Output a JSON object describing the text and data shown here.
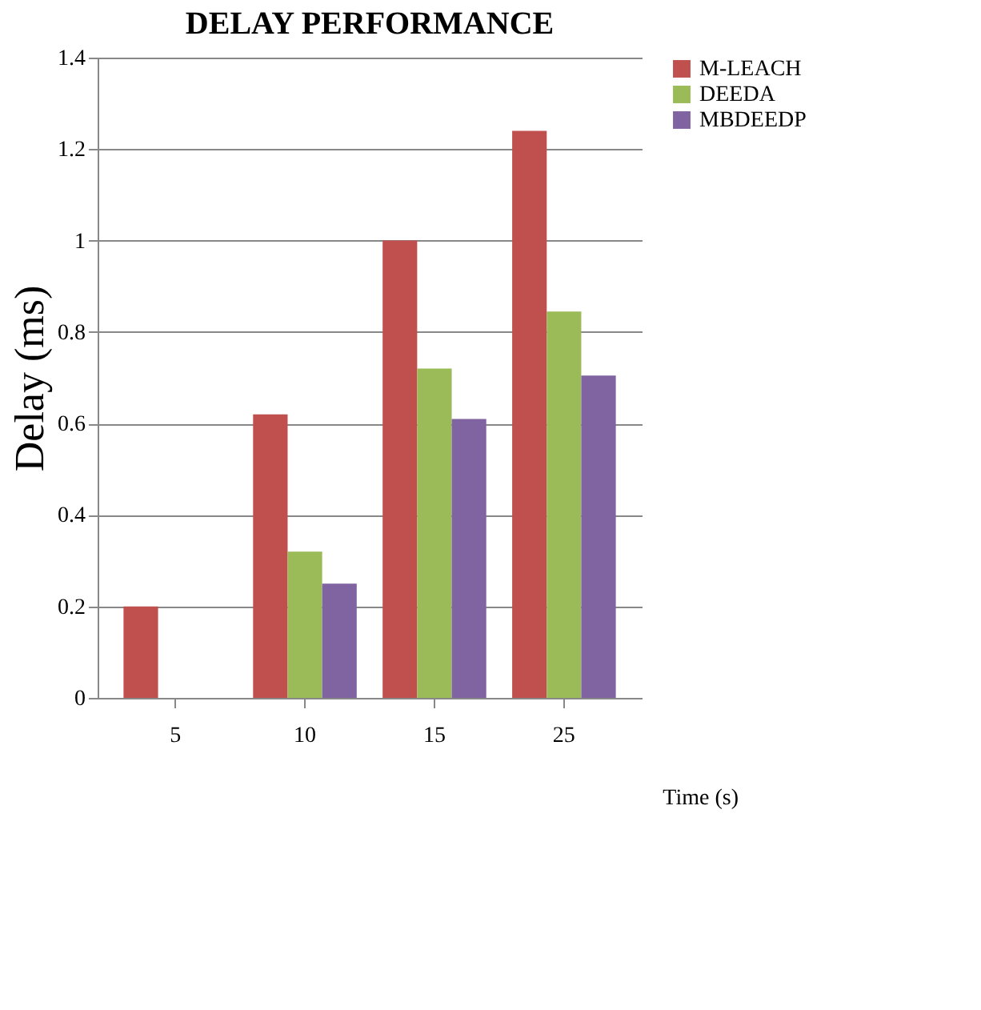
{
  "chart_data": {
    "type": "bar",
    "title": "DELAY PERFORMANCE",
    "xlabel": "Time (s)",
    "ylabel": "Delay (ms)",
    "categories": [
      "5",
      "10",
      "15",
      "25"
    ],
    "series": [
      {
        "name": "M-LEACH",
        "color": "#c0504d",
        "values": [
          0.2,
          0.62,
          1.0,
          1.24
        ]
      },
      {
        "name": "DEEDA",
        "color": "#9bbb59",
        "values": [
          0,
          0.32,
          0.72,
          0.845
        ]
      },
      {
        "name": "MBDEEDP",
        "color": "#8064a2",
        "values": [
          0,
          0.25,
          0.61,
          0.705
        ]
      }
    ],
    "ylim": [
      0,
      1.4
    ],
    "yticks": [
      0,
      0.2,
      0.4,
      0.6,
      0.8,
      1,
      1.2,
      1.4
    ],
    "grid": "y",
    "legend": "right"
  }
}
